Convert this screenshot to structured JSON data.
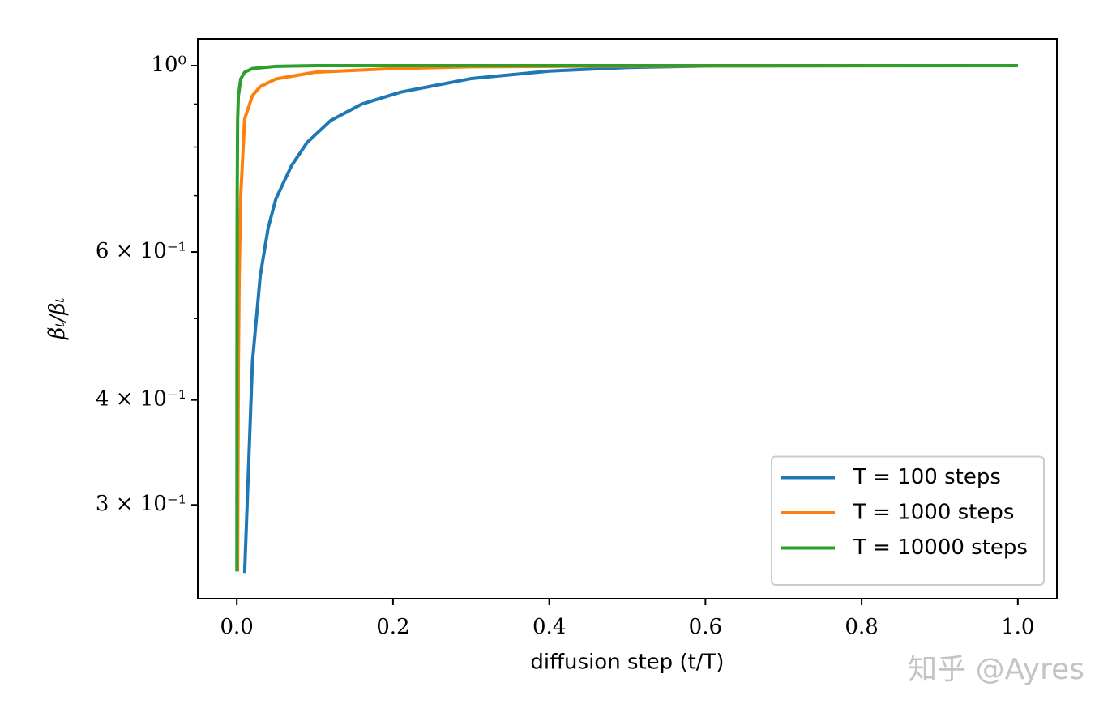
{
  "chart_data": {
    "type": "line",
    "xlabel": "diffusion step (t/T)",
    "ylabel": "β̃ₜ/βₜ",
    "watermark": "知乎 @Ayres",
    "xlim": [
      -0.05,
      1.05
    ],
    "ylim": [
      0.232,
      1.076
    ],
    "yscale": "log",
    "xticks": [
      {
        "value": 0,
        "label": "0.0"
      },
      0.2,
      0.4,
      0.6,
      0.8,
      {
        "value": 1,
        "label": "1.0"
      }
    ],
    "yticks": [
      {
        "value": 0.3,
        "label": "3 × 10⁻¹"
      },
      {
        "value": 0.4,
        "label": "4 × 10⁻¹"
      },
      {
        "value": 0.6,
        "label": "6 × 10⁻¹"
      },
      {
        "value": 1,
        "label": "10⁰"
      }
    ],
    "yminor_ticks": [
      0.5,
      0.7,
      0.8,
      0.9
    ],
    "legend": "lower right",
    "series": [
      {
        "name": "T = 100 steps",
        "color": "#1f77b4",
        "x": [
          0.01,
          0.02,
          0.03,
          0.04,
          0.05,
          0.07,
          0.09,
          0.12,
          0.16,
          0.21,
          0.3,
          0.4,
          0.5,
          0.6,
          0.8,
          1.0
        ],
        "values": [
          0.249,
          0.444,
          0.562,
          0.64,
          0.694,
          0.76,
          0.81,
          0.86,
          0.9,
          0.93,
          0.965,
          0.985,
          0.995,
          0.999,
          1.0,
          1.0
        ]
      },
      {
        "name": "T = 1000 steps",
        "color": "#ff7f0e",
        "x": [
          0.001,
          0.002,
          0.003,
          0.005,
          0.01,
          0.02,
          0.03,
          0.05,
          0.1,
          0.2,
          0.3,
          0.5,
          1.0
        ],
        "values": [
          0.25,
          0.44,
          0.56,
          0.7,
          0.864,
          0.921,
          0.944,
          0.964,
          0.982,
          0.992,
          0.997,
          0.999,
          1.0
        ]
      },
      {
        "name": "T = 10000 steps",
        "color": "#2ca02c",
        "x": [
          0.0001,
          0.0002,
          0.0003,
          0.0005,
          0.001,
          0.002,
          0.005,
          0.01,
          0.02,
          0.05,
          0.1,
          1.0
        ],
        "values": [
          0.25,
          0.44,
          0.56,
          0.7,
          0.86,
          0.92,
          0.964,
          0.982,
          0.992,
          0.998,
          1.0,
          1.0
        ]
      }
    ]
  }
}
